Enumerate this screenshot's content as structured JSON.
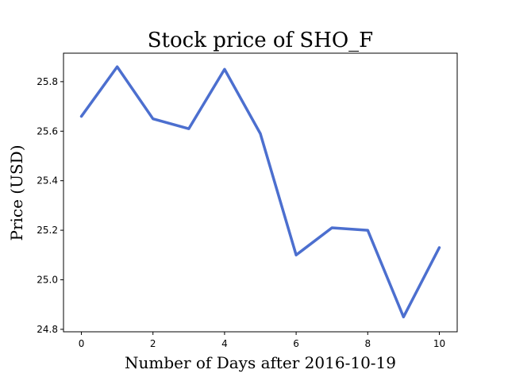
{
  "chart_data": {
    "type": "line",
    "title": "Stock price of SHO_F",
    "xlabel": "Number of Days after 2016-10-19",
    "ylabel": "Price (USD)",
    "x": [
      0,
      1,
      2,
      3,
      4,
      5,
      6,
      7,
      8,
      9,
      10
    ],
    "series": [
      {
        "values": [
          25.66,
          25.86,
          25.65,
          25.61,
          25.85,
          25.59,
          25.1,
          25.21,
          25.2,
          24.85,
          25.13
        ],
        "color": "#4c6fcf"
      }
    ],
    "xlim": [
      -0.5,
      10.5
    ],
    "ylim": [
      24.79,
      25.915
    ],
    "xticks": [
      0,
      2,
      4,
      6,
      8,
      10
    ],
    "xtick_labels": [
      "0",
      "2",
      "4",
      "6",
      "8",
      "10"
    ],
    "yticks": [
      24.8,
      25.0,
      25.2,
      25.4,
      25.6,
      25.8
    ],
    "ytick_labels": [
      "24.8",
      "25.0",
      "25.2",
      "25.4",
      "25.6",
      "25.8"
    ],
    "grid": false,
    "legend": false
  }
}
